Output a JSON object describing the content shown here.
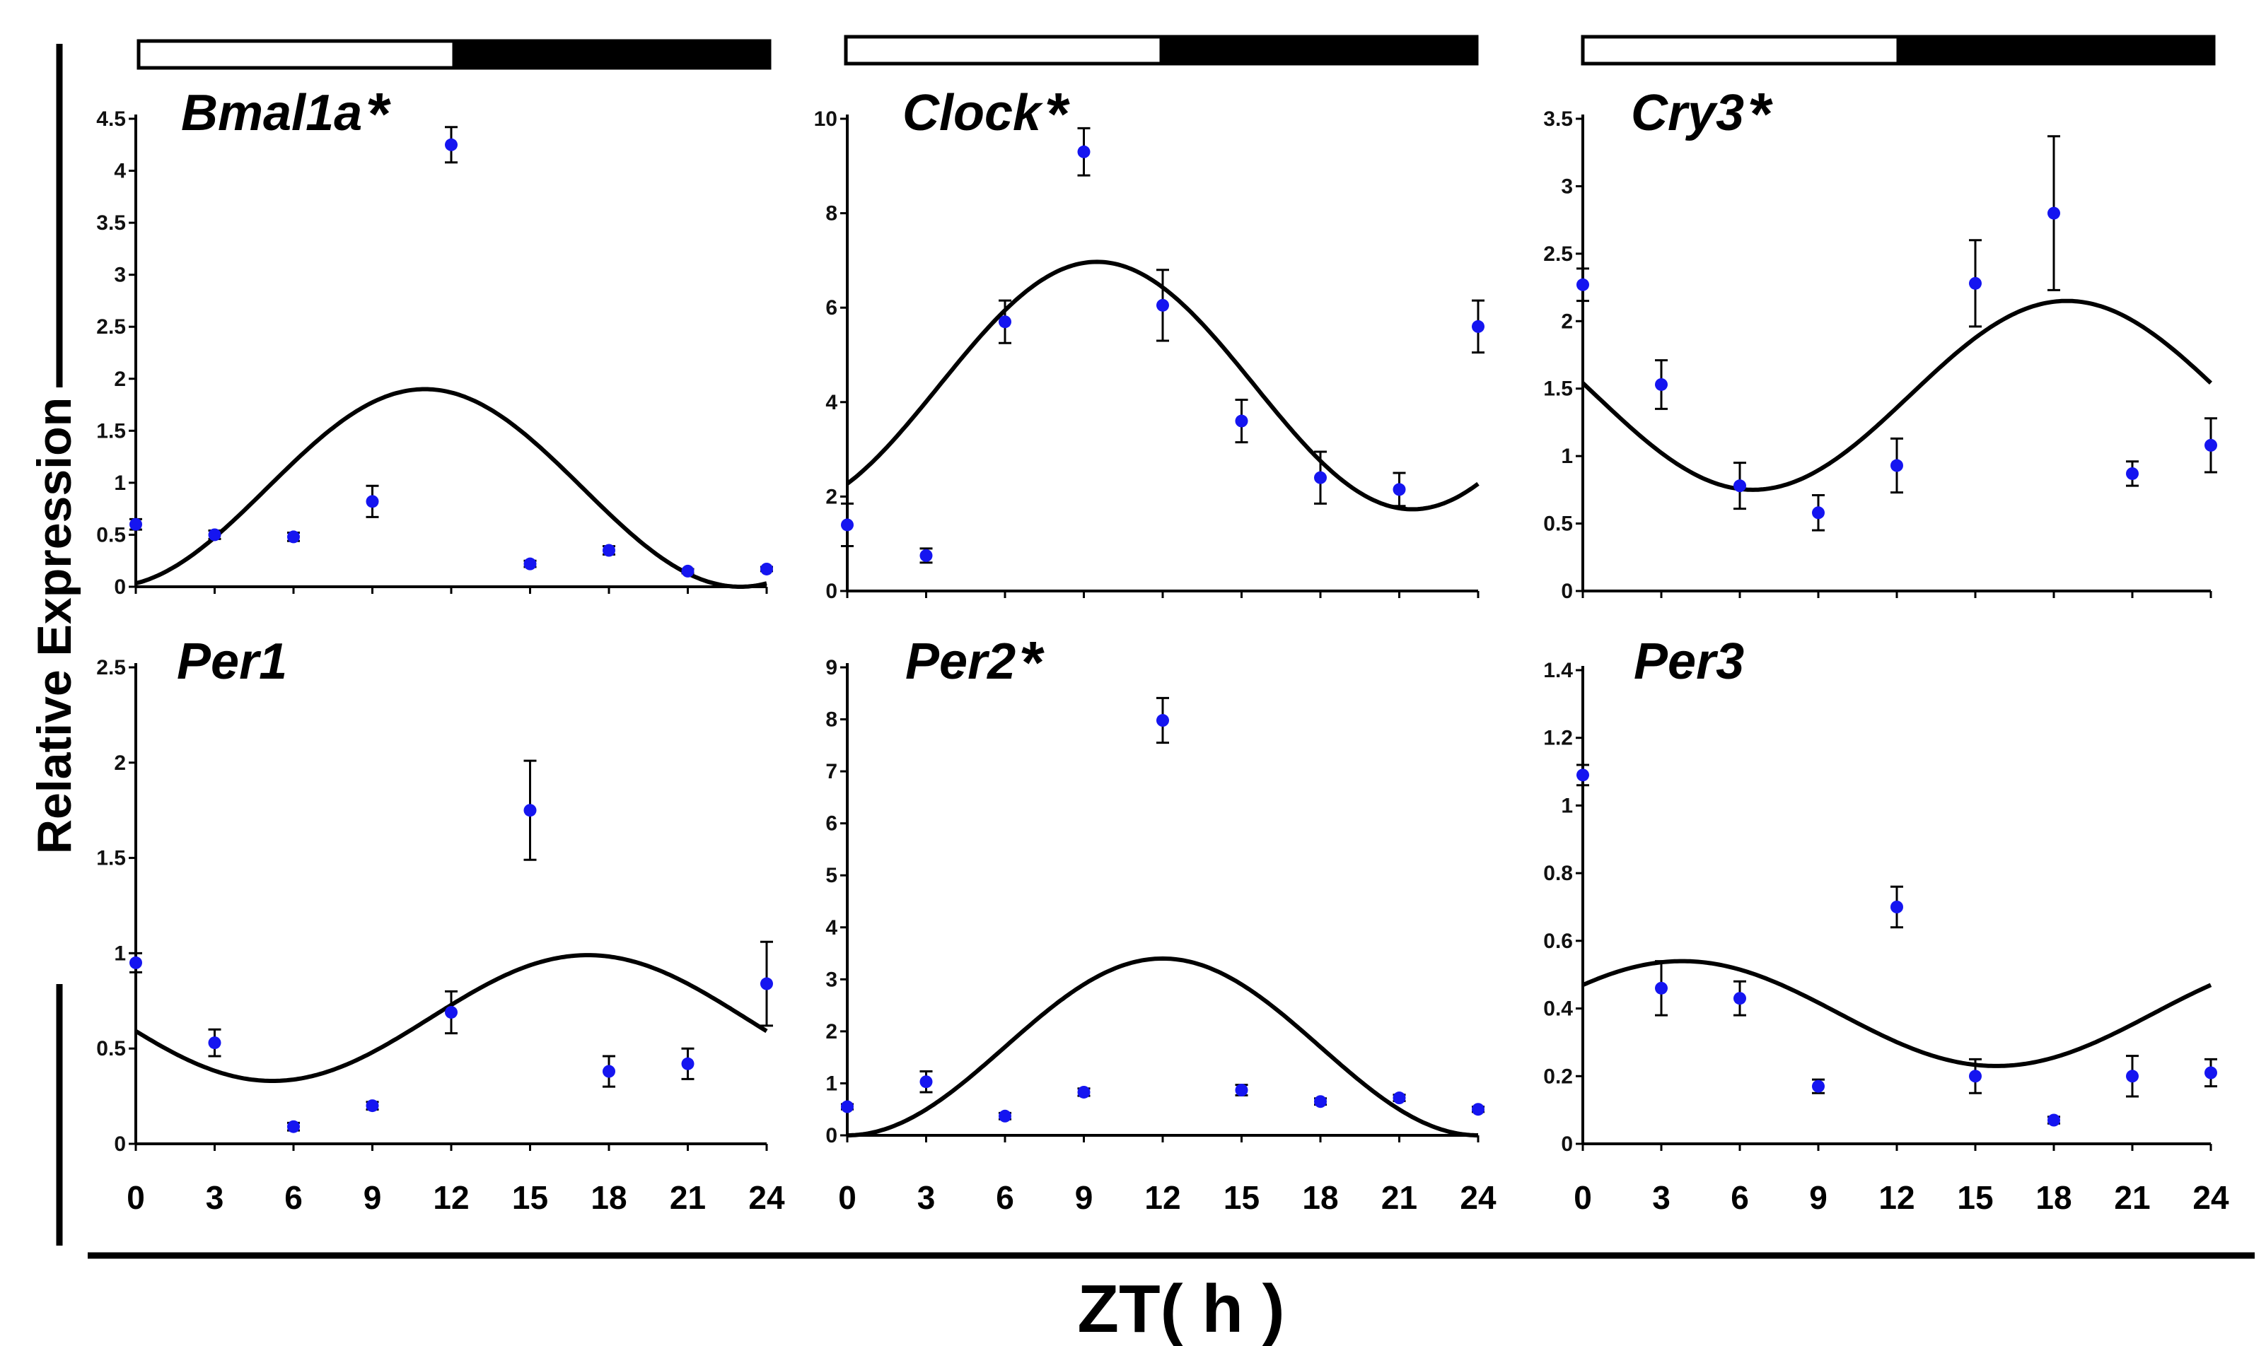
{
  "figure": {
    "ylabel": "Relative Expression",
    "xlabel": "ZT( h )",
    "x_ticks": [
      "0",
      "3",
      "6",
      "9",
      "12",
      "15",
      "18",
      "21",
      "24"
    ],
    "star": "*"
  },
  "chart_data": [
    {
      "type": "scatter",
      "title": "Bmal1a",
      "significant": true,
      "x": [
        0,
        3,
        6,
        9,
        12,
        15,
        18,
        21,
        24
      ],
      "values": [
        0.6,
        0.5,
        0.48,
        0.82,
        4.25,
        0.22,
        0.35,
        0.15,
        0.17
      ],
      "errors": [
        0.05,
        0.04,
        0.04,
        0.15,
        0.17,
        0.03,
        0.04,
        0.02,
        0.02
      ],
      "ylim": [
        0,
        4.5
      ],
      "yticks": [
        "0",
        "0.5",
        "1",
        "1.5",
        "2",
        "2.5",
        "3",
        "3.5",
        "4",
        "4.5"
      ],
      "fit": {
        "mesor": 0.95,
        "amplitude": 0.95,
        "acrophase": 11
      }
    },
    {
      "type": "scatter",
      "title": "Clock",
      "significant": true,
      "x": [
        0,
        3,
        6,
        9,
        12,
        15,
        18,
        21,
        24
      ],
      "values": [
        1.4,
        0.75,
        5.7,
        9.3,
        6.05,
        3.6,
        2.4,
        2.15,
        5.6
      ],
      "errors": [
        0.45,
        0.15,
        0.45,
        0.5,
        0.75,
        0.45,
        0.55,
        0.35,
        0.55
      ],
      "ylim": [
        0,
        10
      ],
      "yticks": [
        "0",
        "2",
        "4",
        "6",
        "8",
        "10"
      ],
      "fit": {
        "mesor": 4.35,
        "amplitude": 2.62,
        "acrophase": 9.5
      }
    },
    {
      "type": "scatter",
      "title": "Cry3",
      "significant": true,
      "x": [
        0,
        3,
        6,
        9,
        12,
        15,
        18,
        21,
        24
      ],
      "values": [
        2.27,
        1.53,
        0.78,
        0.58,
        0.93,
        2.28,
        2.8,
        0.87,
        1.08
      ],
      "errors": [
        0.12,
        0.18,
        0.17,
        0.13,
        0.2,
        0.32,
        0.57,
        0.09,
        0.2
      ],
      "ylim": [
        0,
        3.5
      ],
      "yticks": [
        "0",
        "0.5",
        "1",
        "1.5",
        "2",
        "2.5",
        "3",
        "3.5"
      ],
      "fit": {
        "mesor": 1.45,
        "amplitude": 0.7,
        "acrophase": 18.5
      }
    },
    {
      "type": "scatter",
      "title": "Per1",
      "significant": false,
      "x": [
        0,
        3,
        6,
        9,
        12,
        15,
        18,
        21,
        24
      ],
      "values": [
        0.95,
        0.53,
        0.09,
        0.2,
        0.69,
        1.75,
        0.38,
        0.42,
        0.84
      ],
      "errors": [
        0.05,
        0.07,
        0.02,
        0.02,
        0.11,
        0.26,
        0.08,
        0.08,
        0.22
      ],
      "ylim": [
        0,
        2.5
      ],
      "yticks": [
        "0",
        "0.5",
        "1",
        "1.5",
        "2",
        "2.5"
      ],
      "fit": {
        "mesor": 0.66,
        "amplitude": 0.33,
        "acrophase": 17.2
      }
    },
    {
      "type": "scatter",
      "title": "Per2",
      "significant": true,
      "x": [
        0,
        3,
        6,
        9,
        12,
        15,
        18,
        21,
        24
      ],
      "values": [
        0.55,
        1.03,
        0.37,
        0.83,
        7.98,
        0.87,
        0.65,
        0.72,
        0.5
      ],
      "errors": [
        0.05,
        0.2,
        0.06,
        0.07,
        0.43,
        0.1,
        0.06,
        0.06,
        0.05
      ],
      "ylim": [
        0,
        9
      ],
      "yticks": [
        "0",
        "1",
        "2",
        "3",
        "4",
        "5",
        "6",
        "7",
        "8",
        "9"
      ],
      "fit": {
        "mesor": 1.7,
        "amplitude": 1.7,
        "acrophase": 12
      }
    },
    {
      "type": "scatter",
      "title": "Per3",
      "significant": false,
      "x": [
        0,
        3,
        6,
        9,
        12,
        15,
        18,
        21,
        24
      ],
      "values": [
        1.09,
        0.46,
        0.43,
        0.17,
        0.7,
        0.2,
        0.07,
        0.2,
        0.21
      ],
      "errors": [
        0.03,
        0.08,
        0.05,
        0.02,
        0.06,
        0.05,
        0.01,
        0.06,
        0.04
      ],
      "ylim": [
        0,
        1.4
      ],
      "yticks": [
        "0",
        "0.2",
        "0.4",
        "0.6",
        "0.8",
        "1",
        "1.2",
        "1.4"
      ],
      "fit": {
        "mesor": 0.385,
        "amplitude": 0.155,
        "acrophase": 3.8
      }
    }
  ],
  "colors": {
    "points": "#1515f0",
    "fit": "#000000",
    "light_bar": "#ffffff",
    "dark_bar": "#000000"
  }
}
